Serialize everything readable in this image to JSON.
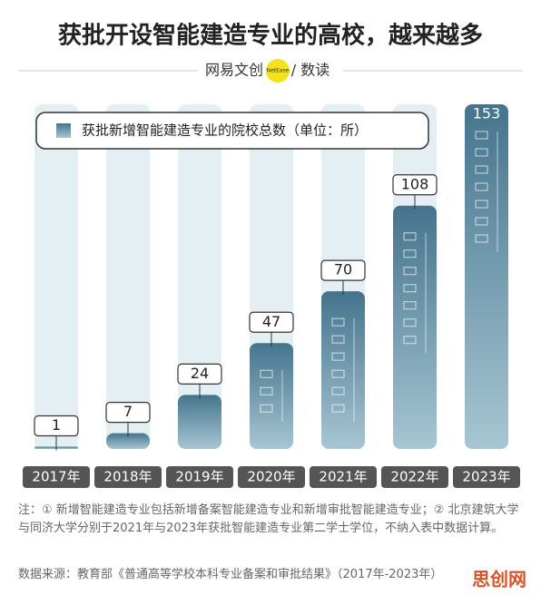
{
  "chart_data": {
    "type": "bar",
    "title": "获批开设智能建造专业的高校，越来越多",
    "categories": [
      "2017年",
      "2018年",
      "2019年",
      "2020年",
      "2021年",
      "2022年",
      "2023年"
    ],
    "series": [
      {
        "name": "获批新增智能建造专业的院校总数（单位：所）",
        "color": "#4d7d96",
        "values": [
          1,
          7,
          24,
          47,
          70,
          108,
          153
        ]
      }
    ]
  },
  "brand": {
    "name": "网易文创",
    "logo": "NetEase",
    "section": "/ 数读"
  },
  "notes": "注：① 新增智能建造专业包括新增备案智能建造专业和新增审批智能建造专业；② 北京建筑大学与同济大学分别于2021年与2023年获批智能建造专业第二学士学位，不纳入表中数据计算。",
  "source": "数据来源：教育部《普通高等学校本科专业备案和审批结果》（2017年-2023年）",
  "watermark": "思创网"
}
